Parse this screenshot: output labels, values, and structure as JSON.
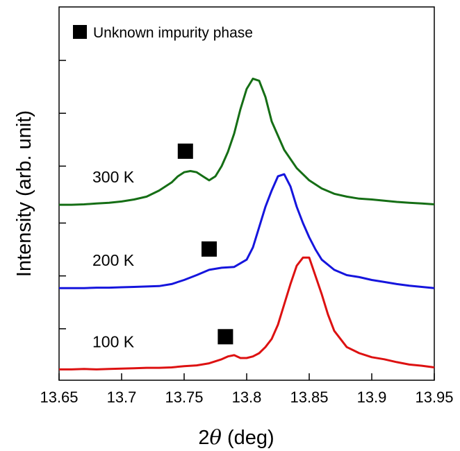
{
  "chart_data": {
    "type": "line",
    "xlabel_prefix": "2",
    "xlabel_symbol": "θ",
    "xlabel_suffix": " (deg)",
    "ylabel": "Intensity (arb. unit)",
    "xlim": [
      13.65,
      13.95
    ],
    "x_ticks": [
      "13.65",
      "13.7",
      "13.75",
      "13.8",
      "13.85",
      "13.9",
      "13.95"
    ],
    "x_tick_values": [
      13.65,
      13.7,
      13.75,
      13.8,
      13.85,
      13.9,
      13.95
    ],
    "y_ticks_shown": false,
    "grid": false,
    "legend": {
      "placement": "top-left",
      "marker": "square",
      "label": "Unknown impurity phase"
    },
    "series": [
      {
        "name": "100 K",
        "color": "#dd1111",
        "x": [
          13.65,
          13.66,
          13.67,
          13.68,
          13.69,
          13.7,
          13.71,
          13.72,
          13.73,
          13.74,
          13.75,
          13.76,
          13.77,
          13.78,
          13.785,
          13.79,
          13.795,
          13.8,
          13.805,
          13.81,
          13.815,
          13.82,
          13.825,
          13.83,
          13.835,
          13.84,
          13.845,
          13.85,
          13.855,
          13.86,
          13.865,
          13.87,
          13.88,
          13.89,
          13.9,
          13.91,
          13.92,
          13.93,
          13.94,
          13.95
        ],
        "y": [
          0.3,
          0.3,
          0.31,
          0.3,
          0.31,
          0.32,
          0.33,
          0.34,
          0.34,
          0.35,
          0.38,
          0.4,
          0.45,
          0.55,
          0.62,
          0.65,
          0.58,
          0.58,
          0.62,
          0.7,
          0.85,
          1.05,
          1.4,
          1.9,
          2.4,
          2.85,
          3.05,
          3.05,
          2.6,
          2.15,
          1.65,
          1.25,
          0.85,
          0.7,
          0.6,
          0.55,
          0.48,
          0.42,
          0.39,
          0.35
        ],
        "impurity_marker_x": 13.783
      },
      {
        "name": "200 K",
        "color": "#1515dd",
        "x": [
          13.65,
          13.66,
          13.67,
          13.68,
          13.69,
          13.7,
          13.71,
          13.72,
          13.73,
          13.74,
          13.75,
          13.76,
          13.77,
          13.78,
          13.79,
          13.8,
          13.805,
          13.81,
          13.815,
          13.82,
          13.825,
          13.83,
          13.835,
          13.84,
          13.845,
          13.85,
          13.855,
          13.86,
          13.87,
          13.88,
          13.89,
          13.9,
          13.91,
          13.92,
          13.93,
          13.94,
          13.95
        ],
        "y": [
          2.3,
          2.3,
          2.3,
          2.31,
          2.31,
          2.32,
          2.33,
          2.34,
          2.35,
          2.4,
          2.5,
          2.62,
          2.75,
          2.8,
          2.82,
          3.0,
          3.3,
          3.8,
          4.3,
          4.7,
          5.05,
          5.1,
          4.8,
          4.3,
          3.9,
          3.55,
          3.25,
          3.0,
          2.75,
          2.62,
          2.57,
          2.5,
          2.45,
          2.4,
          2.36,
          2.33,
          2.3
        ],
        "impurity_marker_x": 13.77
      },
      {
        "name": "300 K",
        "color": "#156e15",
        "x": [
          13.65,
          13.66,
          13.67,
          13.68,
          13.69,
          13.7,
          13.71,
          13.72,
          13.73,
          13.74,
          13.745,
          13.75,
          13.755,
          13.76,
          13.765,
          13.77,
          13.775,
          13.78,
          13.785,
          13.79,
          13.795,
          13.8,
          13.805,
          13.81,
          13.815,
          13.82,
          13.83,
          13.84,
          13.85,
          13.86,
          13.87,
          13.88,
          13.89,
          13.9,
          13.91,
          13.92,
          13.93,
          13.94,
          13.95
        ],
        "y": [
          4.35,
          4.35,
          4.36,
          4.38,
          4.4,
          4.43,
          4.48,
          4.55,
          4.7,
          4.9,
          5.05,
          5.15,
          5.18,
          5.15,
          5.05,
          4.95,
          5.05,
          5.3,
          5.65,
          6.1,
          6.7,
          7.2,
          7.45,
          7.4,
          7.0,
          6.4,
          5.7,
          5.25,
          4.95,
          4.75,
          4.62,
          4.55,
          4.5,
          4.48,
          4.45,
          4.42,
          4.4,
          4.38,
          4.36
        ],
        "impurity_marker_x": 13.751
      }
    ]
  }
}
